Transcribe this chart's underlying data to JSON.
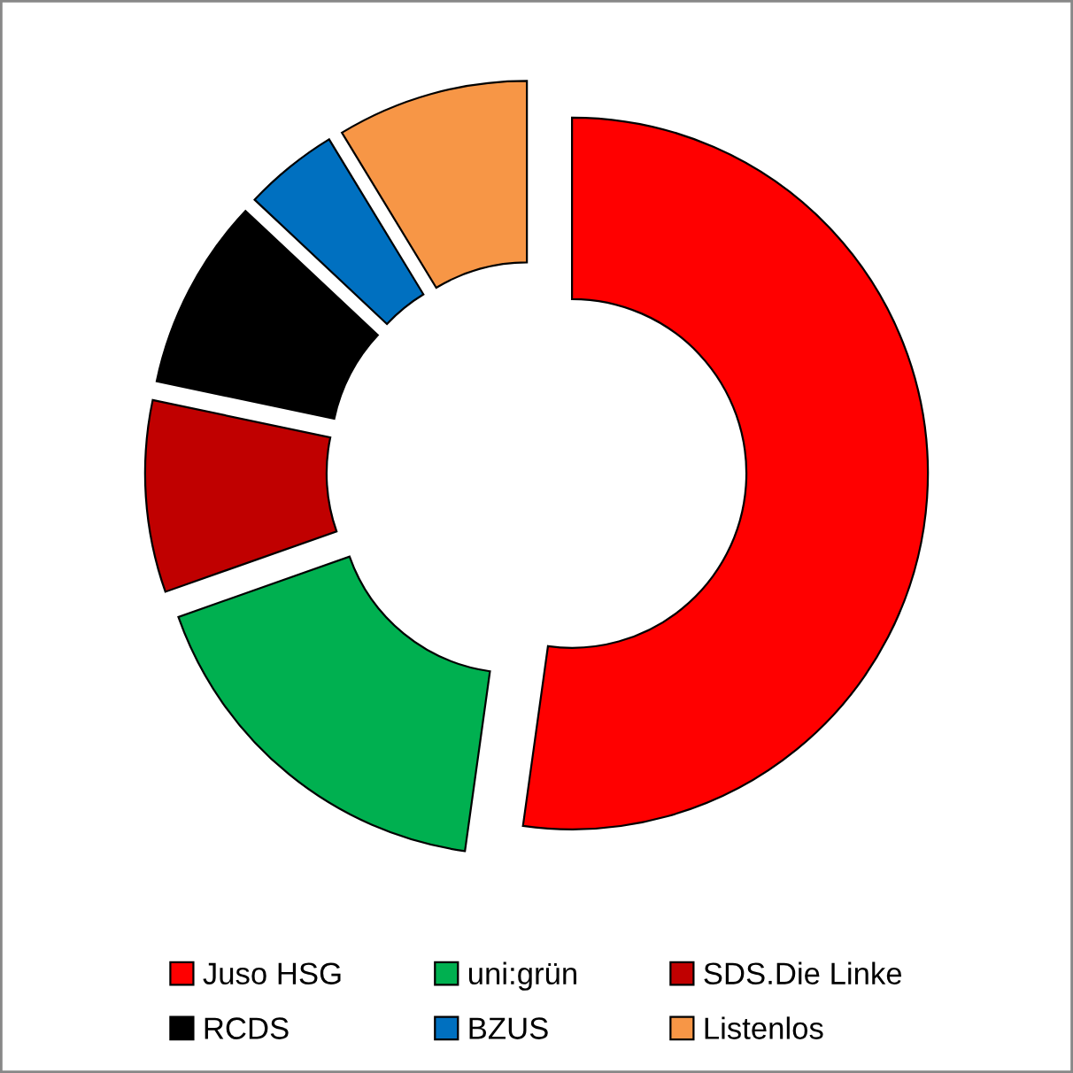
{
  "chart_data": {
    "type": "donut",
    "categories": [
      "Juso HSG",
      "uni:grün",
      "SDS.Die Linke",
      "RCDS",
      "BZUS",
      "Listenlos"
    ],
    "values": [
      52.2,
      17.4,
      8.7,
      8.7,
      4.3,
      8.7
    ],
    "colors": [
      "#ff0000",
      "#00b050",
      "#c00000",
      "#000000",
      "#0070c0",
      "#f79646"
    ],
    "legend": "bottom"
  }
}
